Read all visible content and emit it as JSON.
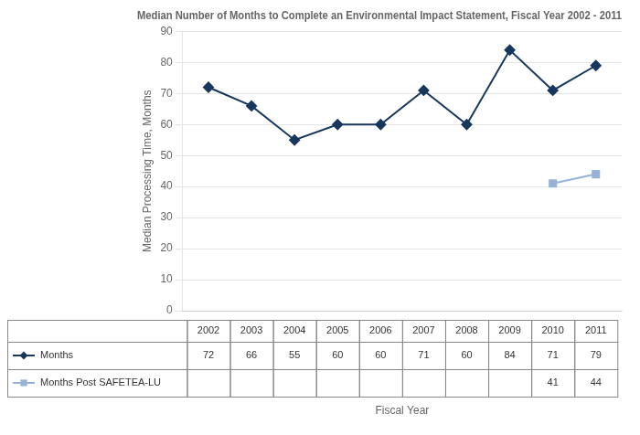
{
  "chart_data": {
    "type": "line",
    "title": "Median Number of Months to Complete an Environmental Impact Statement, Fiscal Year 2002 - 2011",
    "x_label": "Fiscal Year",
    "y_label": "Median Processing Time, Months",
    "x": [
      2002,
      2003,
      2004,
      2005,
      2006,
      2007,
      2008,
      2009,
      2010,
      2011
    ],
    "series": [
      {
        "name": "Months",
        "color": "#17375E",
        "marker": "diamond",
        "values": [
          72,
          66,
          55,
          60,
          60,
          71,
          60,
          84,
          71,
          79
        ]
      },
      {
        "name": "Months Post SAFETEA-LU",
        "color": "#95B3D7",
        "marker": "square",
        "values": [
          null,
          null,
          null,
          null,
          null,
          null,
          null,
          null,
          41,
          44
        ]
      }
    ],
    "xlim": [
      2001.4,
      2011.6
    ],
    "xticks": [
      2002,
      2003,
      2004,
      2005,
      2006,
      2007,
      2008,
      2009,
      2010,
      2011
    ],
    "ylim": [
      0,
      90
    ],
    "yticks": [
      0,
      10,
      20,
      30,
      40,
      50,
      60,
      70,
      80,
      90
    ],
    "grid": true,
    "data_labels": true
  }
}
